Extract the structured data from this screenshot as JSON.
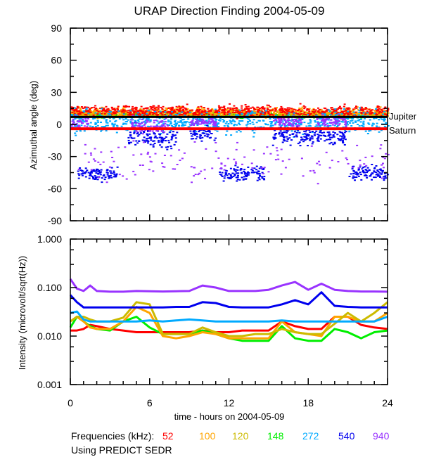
{
  "chart_data": [
    {
      "type": "scatter",
      "title": "URAP Direction Finding  2004-05-09",
      "xlabel": "",
      "ylabel": "Azimuthal angle (deg)",
      "xlim": [
        0,
        24
      ],
      "ylim": [
        -90,
        90
      ],
      "xticks": [
        0,
        6,
        12,
        18,
        24
      ],
      "yticks": [
        90,
        60,
        30,
        0,
        -30,
        -60,
        -90
      ],
      "ytick_labels": [
        "90",
        "60",
        "30",
        "0",
        "-30",
        "-60",
        "-90"
      ],
      "reference_lines": [
        {
          "name": "Jupiter",
          "y": 7,
          "color": "#000000"
        },
        {
          "name": "Saturn",
          "y": -4,
          "color": "#ff0000"
        }
      ],
      "series": [
        {
          "name": "148",
          "color": "#00ee00",
          "clusters": [
            {
              "x_range": [
                0,
                24
              ],
              "y_center": 9,
              "y_spread": 3
            }
          ]
        },
        {
          "name": "120",
          "color": "#ccbb00",
          "clusters": [
            {
              "x_range": [
                0,
                24
              ],
              "y_center": 10,
              "y_spread": 5
            }
          ]
        },
        {
          "name": "100",
          "color": "#ffa500",
          "clusters": [
            {
              "x_range": [
                0,
                24
              ],
              "y_center": 12,
              "y_spread": 6
            }
          ]
        },
        {
          "name": "52",
          "color": "#ff0000",
          "clusters": [
            {
              "x_range": [
                0,
                24
              ],
              "y_center": 13,
              "y_spread": 8
            }
          ]
        },
        {
          "name": "272",
          "color": "#00aaff",
          "clusters": [
            {
              "x_range": [
                0,
                24
              ],
              "y_center": 3,
              "y_spread": 15
            }
          ]
        },
        {
          "name": "540",
          "color": "#0000ee",
          "clusters": [
            {
              "x_range": [
                0.4,
                3.5
              ],
              "y_center": -45,
              "y_spread": 10
            },
            {
              "x_range": [
                4.3,
                8
              ],
              "y_center": -12,
              "y_spread": 15
            },
            {
              "x_range": [
                9,
                11
              ],
              "y_center": -8,
              "y_spread": 10
            },
            {
              "x_range": [
                11.2,
                14.6
              ],
              "y_center": -45,
              "y_spread": 10
            },
            {
              "x_range": [
                15.2,
                20.8
              ],
              "y_center": -10,
              "y_spread": 12
            },
            {
              "x_range": [
                21,
                24
              ],
              "y_center": -45,
              "y_spread": 10
            }
          ]
        },
        {
          "name": "940",
          "color": "#9933ff",
          "clusters": [
            {
              "x_range": [
                0,
                1.3
              ],
              "y_center": 3,
              "y_spread": 8
            },
            {
              "x_range": [
                4.5,
                7.3
              ],
              "y_center": 0,
              "y_spread": 10
            },
            {
              "x_range": [
                9,
                11
              ],
              "y_center": 3,
              "y_spread": 6
            },
            {
              "x_range": [
                15.3,
                17.5
              ],
              "y_center": 3,
              "y_spread": 8
            },
            {
              "x_range": [
                18.6,
                20.8
              ],
              "y_center": 3,
              "y_spread": 8
            },
            {
              "x_range": [
                0.5,
                24
              ],
              "y_center": -35,
              "y_spread": 25
            }
          ]
        }
      ],
      "right_labels": [
        "Jupiter",
        "Saturn"
      ]
    },
    {
      "type": "line",
      "xlabel": "time - hours on 2004-05-09",
      "ylabel": "Intensity (microvolt/sqrt(Hz))",
      "yscale": "log",
      "xlim": [
        0,
        24
      ],
      "ylim": [
        0.001,
        1.0
      ],
      "xticks": [
        0,
        6,
        12,
        18,
        24
      ],
      "xtick_labels": [
        "0",
        "6",
        "12",
        "18",
        "24"
      ],
      "yticks": [
        1.0,
        0.1,
        0.01,
        0.001
      ],
      "ytick_labels": [
        "1.000",
        "0.100",
        "0.010",
        "0.001"
      ],
      "x": [
        0,
        0.5,
        1,
        1.5,
        2,
        3,
        4,
        5,
        6,
        7,
        8,
        9,
        10,
        11,
        12,
        13,
        14,
        15,
        16,
        17,
        18,
        19,
        20,
        21,
        22,
        23,
        24
      ],
      "series": [
        {
          "name": "940",
          "color": "#9933ff",
          "values": [
            0.15,
            0.095,
            0.085,
            0.11,
            0.085,
            0.082,
            0.082,
            0.085,
            0.084,
            0.083,
            0.084,
            0.085,
            0.11,
            0.1,
            0.085,
            0.085,
            0.085,
            0.09,
            0.11,
            0.13,
            0.09,
            0.12,
            0.09,
            0.085,
            0.083,
            0.083,
            0.082
          ]
        },
        {
          "name": "540",
          "color": "#0000ee",
          "values": [
            0.07,
            0.05,
            0.039,
            0.039,
            0.039,
            0.039,
            0.039,
            0.039,
            0.039,
            0.039,
            0.04,
            0.04,
            0.05,
            0.048,
            0.04,
            0.039,
            0.039,
            0.039,
            0.045,
            0.055,
            0.045,
            0.08,
            0.042,
            0.04,
            0.039,
            0.039,
            0.039
          ]
        },
        {
          "name": "272",
          "color": "#00aaff",
          "values": [
            0.03,
            0.032,
            0.022,
            0.02,
            0.02,
            0.02,
            0.02,
            0.02,
            0.021,
            0.02,
            0.021,
            0.022,
            0.021,
            0.02,
            0.02,
            0.02,
            0.02,
            0.02,
            0.021,
            0.02,
            0.02,
            0.02,
            0.02,
            0.02,
            0.02,
            0.02,
            0.025
          ]
        },
        {
          "name": "120",
          "color": "#ccbb00",
          "values": [
            0.02,
            0.025,
            0.025,
            0.022,
            0.02,
            0.02,
            0.024,
            0.05,
            0.045,
            0.011,
            0.011,
            0.011,
            0.015,
            0.012,
            0.01,
            0.01,
            0.011,
            0.011,
            0.014,
            0.012,
            0.011,
            0.011,
            0.018,
            0.03,
            0.02,
            0.03,
            0.05
          ]
        },
        {
          "name": "100",
          "color": "#ffa500",
          "values": [
            0.02,
            0.025,
            0.02,
            0.015,
            0.014,
            0.014,
            0.02,
            0.04,
            0.03,
            0.01,
            0.009,
            0.01,
            0.012,
            0.011,
            0.009,
            0.009,
            0.009,
            0.009,
            0.02,
            0.012,
            0.011,
            0.01,
            0.025,
            0.025,
            0.02,
            0.02,
            0.03
          ]
        },
        {
          "name": "148",
          "color": "#00ee00",
          "values": [
            0.015,
            0.025,
            0.02,
            0.016,
            0.014,
            0.013,
            0.02,
            0.025,
            0.015,
            0.011,
            0.011,
            0.011,
            0.013,
            0.011,
            0.009,
            0.008,
            0.008,
            0.008,
            0.016,
            0.009,
            0.008,
            0.008,
            0.014,
            0.012,
            0.009,
            0.012,
            0.013
          ]
        },
        {
          "name": "52",
          "color": "#ff0000",
          "values": [
            0.013,
            0.013,
            0.014,
            0.017,
            0.016,
            0.014,
            0.013,
            0.012,
            0.012,
            0.012,
            0.012,
            0.012,
            0.013,
            0.012,
            0.012,
            0.013,
            0.013,
            0.013,
            0.02,
            0.016,
            0.014,
            0.014,
            0.025,
            0.025,
            0.017,
            0.015,
            0.014
          ]
        }
      ]
    }
  ],
  "figure": {
    "title": "URAP Direction Finding  2004-05-09",
    "legend_label": "Frequencies (kHz):",
    "legend": [
      {
        "label": "52",
        "color": "#ff0000"
      },
      {
        "label": "100",
        "color": "#ffa500"
      },
      {
        "label": "120",
        "color": "#ccbb00"
      },
      {
        "label": "148",
        "color": "#00ee00"
      },
      {
        "label": "272",
        "color": "#00aaff"
      },
      {
        "label": "540",
        "color": "#0000ee"
      },
      {
        "label": "940",
        "color": "#9933ff"
      }
    ],
    "footnote": "Using PREDICT SEDR"
  }
}
